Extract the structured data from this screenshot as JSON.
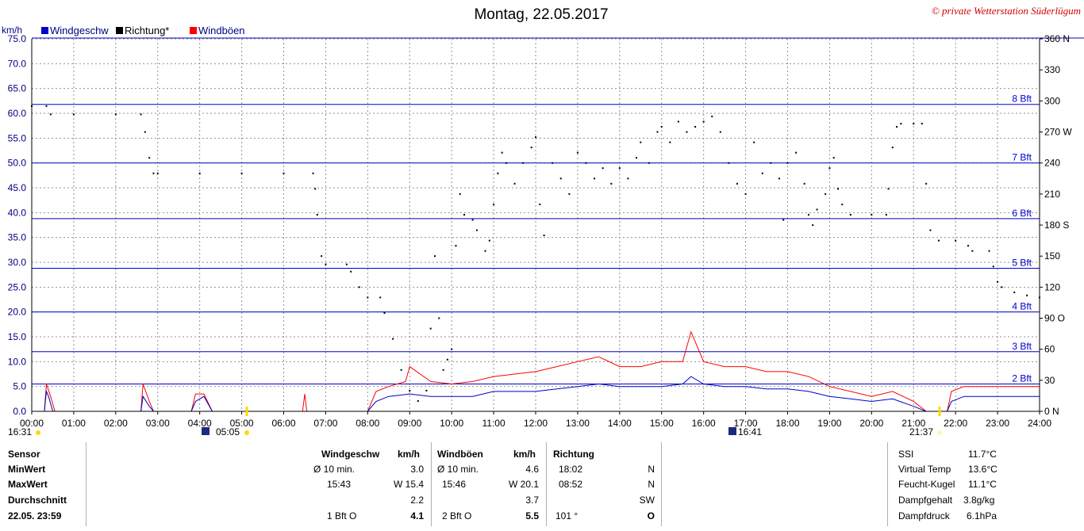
{
  "title": "Montag, 22.05.2017",
  "copyright": "© private Wetterstation Süderlügum",
  "legend": {
    "unit": "km/h",
    "items": [
      {
        "label": "Windgeschw",
        "color": "#0000c8"
      },
      {
        "label": "Richtung*",
        "color": "#000000"
      },
      {
        "label": "Windböen",
        "color": "#ff0000"
      }
    ]
  },
  "sun_markers": {
    "left_time": "16:31",
    "sunrise": "05:05",
    "sunset": "21:37",
    "moon": "16:41"
  },
  "chart_data": {
    "type": "line",
    "x_ticks": [
      "00:00",
      "01:00",
      "02:00",
      "03:00",
      "04:00",
      "05:00",
      "06:00",
      "07:00",
      "08:00",
      "09:00",
      "10:00",
      "11:00",
      "12:00",
      "13:00",
      "14:00",
      "15:00",
      "16:00",
      "17:00",
      "18:00",
      "19:00",
      "20:00",
      "21:00",
      "22:00",
      "23:00",
      "24:00"
    ],
    "y_left_ticks": [
      "0.0",
      "5.0",
      "10.0",
      "15.0",
      "20.0",
      "25.0",
      "30.0",
      "35.0",
      "40.0",
      "45.0",
      "50.0",
      "55.0",
      "60.0",
      "65.0",
      "70.0",
      "75.0"
    ],
    "y_left_range": [
      0,
      75
    ],
    "y_right_ticks": [
      "0 N",
      "30",
      "60",
      "90 O",
      "120",
      "150",
      "180 S",
      "210",
      "240",
      "270 W",
      "300",
      "330",
      "360 N"
    ],
    "y_right_range": [
      0,
      360
    ],
    "bft_lines": [
      {
        "label": "2 Bft",
        "value": 5.5
      },
      {
        "label": "3 Bft",
        "value": 12.0
      },
      {
        "label": "4 Bft",
        "value": 20.0
      },
      {
        "label": "5 Bft",
        "value": 28.8
      },
      {
        "label": "6 Bft",
        "value": 38.8
      },
      {
        "label": "7 Bft",
        "value": 50.0
      },
      {
        "label": "8 Bft",
        "value": 61.8
      }
    ],
    "direction_series": {
      "name": "Richtung*",
      "points": [
        [
          0.0,
          295
        ],
        [
          0.35,
          295
        ],
        [
          0.45,
          287
        ],
        [
          1.0,
          287
        ],
        [
          2.0,
          287
        ],
        [
          2.6,
          287
        ],
        [
          2.7,
          270
        ],
        [
          2.8,
          245
        ],
        [
          2.9,
          230
        ],
        [
          3.0,
          230
        ],
        [
          4.0,
          230
        ],
        [
          5.0,
          230
        ],
        [
          6.0,
          230
        ],
        [
          6.7,
          230
        ],
        [
          6.75,
          215
        ],
        [
          6.8,
          190
        ],
        [
          6.9,
          150
        ],
        [
          7.0,
          142
        ],
        [
          7.5,
          142
        ],
        [
          7.6,
          135
        ],
        [
          7.8,
          120
        ],
        [
          8.0,
          110
        ],
        [
          8.3,
          110
        ],
        [
          8.4,
          95
        ],
        [
          8.6,
          70
        ],
        [
          8.8,
          40
        ],
        [
          9.0,
          20
        ],
        [
          9.2,
          10
        ],
        [
          9.4,
          20
        ],
        [
          9.5,
          80
        ],
        [
          9.6,
          150
        ],
        [
          9.7,
          90
        ],
        [
          9.8,
          40
        ],
        [
          9.9,
          50
        ],
        [
          10.0,
          60
        ],
        [
          10.1,
          160
        ],
        [
          10.2,
          210
        ],
        [
          10.3,
          190
        ],
        [
          10.5,
          185
        ],
        [
          10.6,
          175
        ],
        [
          10.8,
          155
        ],
        [
          10.9,
          165
        ],
        [
          11.0,
          200
        ],
        [
          11.1,
          230
        ],
        [
          11.2,
          250
        ],
        [
          11.3,
          240
        ],
        [
          11.5,
          220
        ],
        [
          11.7,
          240
        ],
        [
          11.9,
          255
        ],
        [
          12.0,
          265
        ],
        [
          12.1,
          200
        ],
        [
          12.2,
          170
        ],
        [
          12.4,
          240
        ],
        [
          12.6,
          225
        ],
        [
          12.8,
          210
        ],
        [
          13.0,
          250
        ],
        [
          13.2,
          240
        ],
        [
          13.4,
          225
        ],
        [
          13.6,
          235
        ],
        [
          13.8,
          220
        ],
        [
          14.0,
          235
        ],
        [
          14.2,
          225
        ],
        [
          14.4,
          245
        ],
        [
          14.5,
          260
        ],
        [
          14.7,
          240
        ],
        [
          14.9,
          270
        ],
        [
          15.0,
          275
        ],
        [
          15.2,
          260
        ],
        [
          15.4,
          280
        ],
        [
          15.6,
          270
        ],
        [
          15.8,
          275
        ],
        [
          16.0,
          280
        ],
        [
          16.2,
          285
        ],
        [
          16.4,
          270
        ],
        [
          16.6,
          240
        ],
        [
          16.8,
          220
        ],
        [
          17.0,
          210
        ],
        [
          17.2,
          260
        ],
        [
          17.4,
          230
        ],
        [
          17.6,
          240
        ],
        [
          17.8,
          225
        ],
        [
          17.9,
          185
        ],
        [
          18.0,
          240
        ],
        [
          18.2,
          250
        ],
        [
          18.4,
          220
        ],
        [
          18.5,
          190
        ],
        [
          18.6,
          180
        ],
        [
          18.7,
          195
        ],
        [
          18.9,
          210
        ],
        [
          19.0,
          235
        ],
        [
          19.1,
          245
        ],
        [
          19.2,
          215
        ],
        [
          19.3,
          200
        ],
        [
          19.5,
          190
        ],
        [
          20.0,
          190
        ],
        [
          20.35,
          190
        ],
        [
          20.4,
          215
        ],
        [
          20.5,
          255
        ],
        [
          20.6,
          275
        ],
        [
          20.7,
          278
        ],
        [
          21.0,
          278
        ],
        [
          21.2,
          278
        ],
        [
          21.3,
          220
        ],
        [
          21.4,
          175
        ],
        [
          21.6,
          165
        ],
        [
          22.0,
          165
        ],
        [
          22.3,
          160
        ],
        [
          22.4,
          155
        ],
        [
          22.8,
          155
        ],
        [
          22.9,
          140
        ],
        [
          23.0,
          125
        ],
        [
          23.1,
          120
        ],
        [
          23.4,
          115
        ],
        [
          23.7,
          112
        ],
        [
          24.0,
          110
        ]
      ]
    },
    "wind_series": {
      "name": "Windgeschw",
      "points": [
        [
          0.0,
          0
        ],
        [
          0.3,
          0
        ],
        [
          0.35,
          4
        ],
        [
          0.4,
          3
        ],
        [
          0.5,
          0
        ],
        [
          1.0,
          0
        ],
        [
          2.0,
          0
        ],
        [
          2.6,
          0
        ],
        [
          2.65,
          3
        ],
        [
          2.8,
          1
        ],
        [
          2.9,
          0
        ],
        [
          3.8,
          0
        ],
        [
          3.9,
          2
        ],
        [
          4.1,
          3
        ],
        [
          4.3,
          0
        ],
        [
          5.0,
          0
        ],
        [
          6.0,
          0
        ],
        [
          6.5,
          0
        ],
        [
          8.0,
          0
        ],
        [
          8.2,
          2
        ],
        [
          8.5,
          3
        ],
        [
          9.0,
          3.5
        ],
        [
          9.5,
          3
        ],
        [
          10.0,
          3
        ],
        [
          10.5,
          3
        ],
        [
          11.0,
          4
        ],
        [
          11.5,
          4
        ],
        [
          12.0,
          4
        ],
        [
          12.5,
          4.5
        ],
        [
          13.0,
          5
        ],
        [
          13.5,
          5.5
        ],
        [
          14.0,
          5
        ],
        [
          14.5,
          5
        ],
        [
          15.0,
          5
        ],
        [
          15.5,
          5.5
        ],
        [
          15.7,
          7
        ],
        [
          16.0,
          5.5
        ],
        [
          16.5,
          5
        ],
        [
          17.0,
          5
        ],
        [
          17.5,
          4.5
        ],
        [
          18.0,
          4.5
        ],
        [
          18.5,
          4
        ],
        [
          19.0,
          3
        ],
        [
          19.5,
          2.5
        ],
        [
          20.0,
          2
        ],
        [
          20.5,
          2.5
        ],
        [
          21.0,
          1
        ],
        [
          21.3,
          0
        ],
        [
          21.8,
          0
        ],
        [
          21.9,
          2
        ],
        [
          22.2,
          3
        ],
        [
          22.5,
          3
        ],
        [
          23.0,
          3
        ],
        [
          23.5,
          3
        ],
        [
          24.0,
          3
        ]
      ]
    },
    "gust_series": {
      "name": "Windböen",
      "points": [
        [
          0.0,
          0
        ],
        [
          0.3,
          0
        ],
        [
          0.35,
          5.5
        ],
        [
          0.45,
          3
        ],
        [
          0.55,
          0
        ],
        [
          1.0,
          0
        ],
        [
          2.0,
          0
        ],
        [
          2.6,
          0
        ],
        [
          2.65,
          5.5
        ],
        [
          2.8,
          2
        ],
        [
          2.9,
          0
        ],
        [
          3.8,
          0
        ],
        [
          3.9,
          3.5
        ],
        [
          4.1,
          3.5
        ],
        [
          4.3,
          0
        ],
        [
          6.0,
          0
        ],
        [
          6.45,
          0
        ],
        [
          6.5,
          3.5
        ],
        [
          6.55,
          0
        ],
        [
          8.0,
          0
        ],
        [
          8.2,
          4
        ],
        [
          8.5,
          5
        ],
        [
          8.9,
          6
        ],
        [
          9.0,
          9
        ],
        [
          9.5,
          6
        ],
        [
          10.0,
          5.5
        ],
        [
          10.5,
          6
        ],
        [
          11.0,
          7
        ],
        [
          11.5,
          7.5
        ],
        [
          12.0,
          8
        ],
        [
          12.5,
          9
        ],
        [
          13.0,
          10
        ],
        [
          13.5,
          11
        ],
        [
          14.0,
          9
        ],
        [
          14.5,
          9
        ],
        [
          15.0,
          10
        ],
        [
          15.5,
          10
        ],
        [
          15.7,
          16
        ],
        [
          16.0,
          10
        ],
        [
          16.5,
          9
        ],
        [
          17.0,
          9
        ],
        [
          17.5,
          8
        ],
        [
          18.0,
          8
        ],
        [
          18.5,
          7
        ],
        [
          19.0,
          5
        ],
        [
          19.5,
          4
        ],
        [
          20.0,
          3
        ],
        [
          20.5,
          4
        ],
        [
          21.0,
          2
        ],
        [
          21.3,
          0
        ],
        [
          21.8,
          0
        ],
        [
          21.9,
          4
        ],
        [
          22.2,
          5
        ],
        [
          22.5,
          5
        ],
        [
          23.0,
          5
        ],
        [
          23.5,
          5
        ],
        [
          24.0,
          5
        ]
      ]
    }
  },
  "table": {
    "sensor": {
      "header": "Sensor",
      "rows": [
        "MinWert",
        "MaxWert",
        "Durchschnitt",
        "22.05. 23:59"
      ]
    },
    "wind": {
      "header": "Windgeschw",
      "unit": "km/h",
      "rows": [
        {
          "a": "Ø 10 min.",
          "b": "3.0"
        },
        {
          "a": "15:43",
          "b": "W 15.4"
        },
        {
          "a": "",
          "b": "2.2"
        },
        {
          "a": "1 Bft O",
          "b": "4.1"
        }
      ]
    },
    "gust": {
      "header": "Windböen",
      "unit": "km/h",
      "rows": [
        {
          "a": "Ø 10 min.",
          "b": "4.6"
        },
        {
          "a": "15:46",
          "b": "W 20.1"
        },
        {
          "a": "",
          "b": "3.7"
        },
        {
          "a": "2 Bft O",
          "b": "5.5"
        }
      ]
    },
    "direction": {
      "header": "Richtung",
      "rows": [
        {
          "a": "18:02",
          "b": "N"
        },
        {
          "a": "08:52",
          "b": "N"
        },
        {
          "a": "",
          "b": "SW"
        },
        {
          "a": "101 °",
          "b": "O"
        }
      ]
    },
    "extra": [
      {
        "label": "SSI",
        "value": "11.7°C"
      },
      {
        "label": "Virtual Temp",
        "value": "13.6°C"
      },
      {
        "label": "Feucht-Kugel",
        "value": "11.1°C"
      },
      {
        "label": "Dampfgehalt",
        "value": "3.8g/kg"
      },
      {
        "label": "Dampfdruck",
        "value": "6.1hPa"
      }
    ]
  }
}
